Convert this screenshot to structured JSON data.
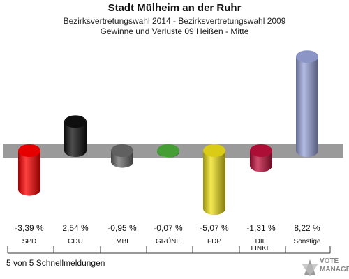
{
  "header": {
    "title": "Stadt Mülheim an der Ruhr",
    "subtitle_1": "Bezirksvertretungswahl 2014 - Bezirksvertretungswahl 2009",
    "subtitle_2": "Gewinne und Verluste 09 Heißen - Mitte"
  },
  "footer": {
    "status": "5 von 5 Schnellmeldungen",
    "brand_line_1": "VOTE",
    "brand_line_2": "MANAGER"
  },
  "chart_data": {
    "type": "bar",
    "style": "3d-cylinder",
    "categories": [
      "SPD",
      "CDU",
      "MBI",
      "GRÜNE",
      "FDP",
      "DIE LINKE",
      "Sonstige"
    ],
    "value_labels": [
      "-3,39 %",
      "2,54 %",
      "-0,95 %",
      "-0,07 %",
      "-5,07 %",
      "-1,31 %",
      "8,22 %"
    ],
    "values": [
      -3.39,
      2.54,
      -0.95,
      -0.07,
      -5.07,
      -1.31,
      8.22
    ],
    "colors": [
      "#ff0000",
      "#111111",
      "#6b6b6b",
      "#4caf3a",
      "#f2e21a",
      "#c0103c",
      "#9aa6dc"
    ],
    "grid": false,
    "legend": "none"
  }
}
